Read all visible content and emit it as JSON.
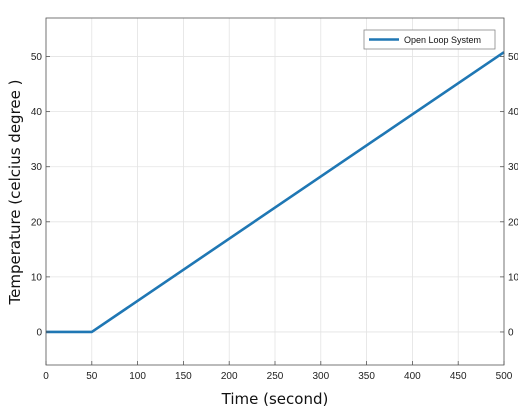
{
  "chart_data": {
    "type": "line",
    "xlabel": "Time (second)",
    "ylabel": "Temperature (celcius degree )",
    "xlim": [
      0,
      500
    ],
    "ylim": [
      -6,
      57
    ],
    "xticks": [
      0,
      50,
      100,
      150,
      200,
      250,
      300,
      350,
      400,
      450,
      500
    ],
    "yticks": [
      0,
      10,
      20,
      30,
      40,
      50
    ],
    "grid": true,
    "legend_position": "top-right",
    "series": [
      {
        "name": "Open Loop System",
        "color": "#1f77b4",
        "x": [
          0,
          50,
          500
        ],
        "y": [
          0,
          0,
          50.8
        ]
      }
    ]
  }
}
